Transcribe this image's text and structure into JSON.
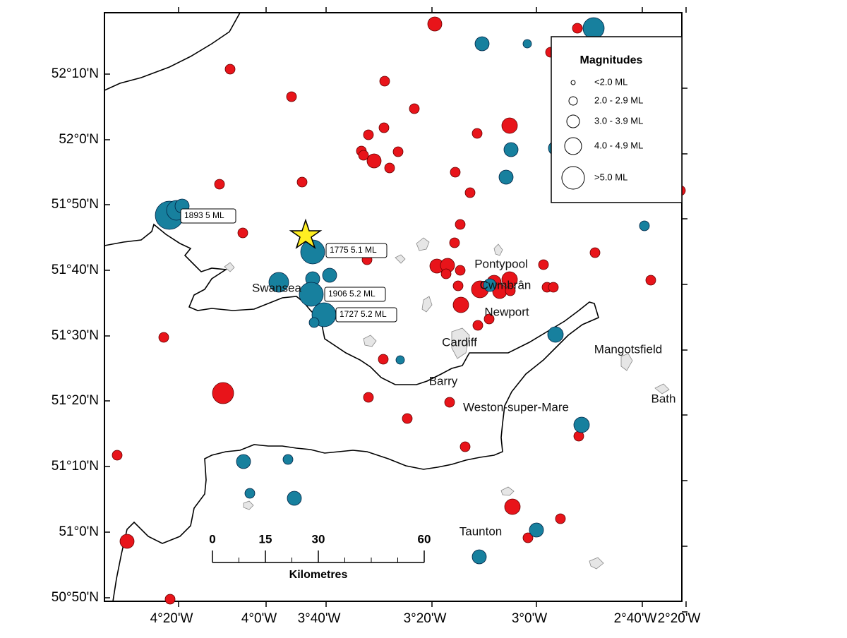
{
  "map": {
    "lat_labels": [
      "52°10'N",
      "52°0'N",
      "51°50'N",
      "51°40'N",
      "51°30'N",
      "51°20'N",
      "51°10'N",
      "51°0'N",
      "50°50'N"
    ],
    "lon_labels": [
      "4°20'W",
      "4°0'W",
      "3°40'W",
      "3°20'W",
      "3°0'W",
      "2°40'W",
      "2°20'W"
    ],
    "places": [
      "Pontypool",
      "Cwmbrân",
      "Newport",
      "Swansea",
      "Cardiff",
      "Barry",
      "Weston-super-Mare",
      "Mangotsfield",
      "Bath",
      "Taunton"
    ],
    "annotations": [
      "1893 5 ML",
      "1775 5.1 ML",
      "1906 5.2 ML",
      "1727 5.2 ML"
    ],
    "legend": {
      "title": "Magnitudes",
      "items": [
        "<2.0 ML",
        "2.0 - 2.9 ML",
        "3.0 - 3.9 ML",
        "4.0 - 4.9 ML",
        ">5.0 ML"
      ]
    },
    "scale_bar": {
      "ticks": [
        0,
        15,
        30,
        60
      ],
      "unit": "Kilometres"
    }
  }
}
